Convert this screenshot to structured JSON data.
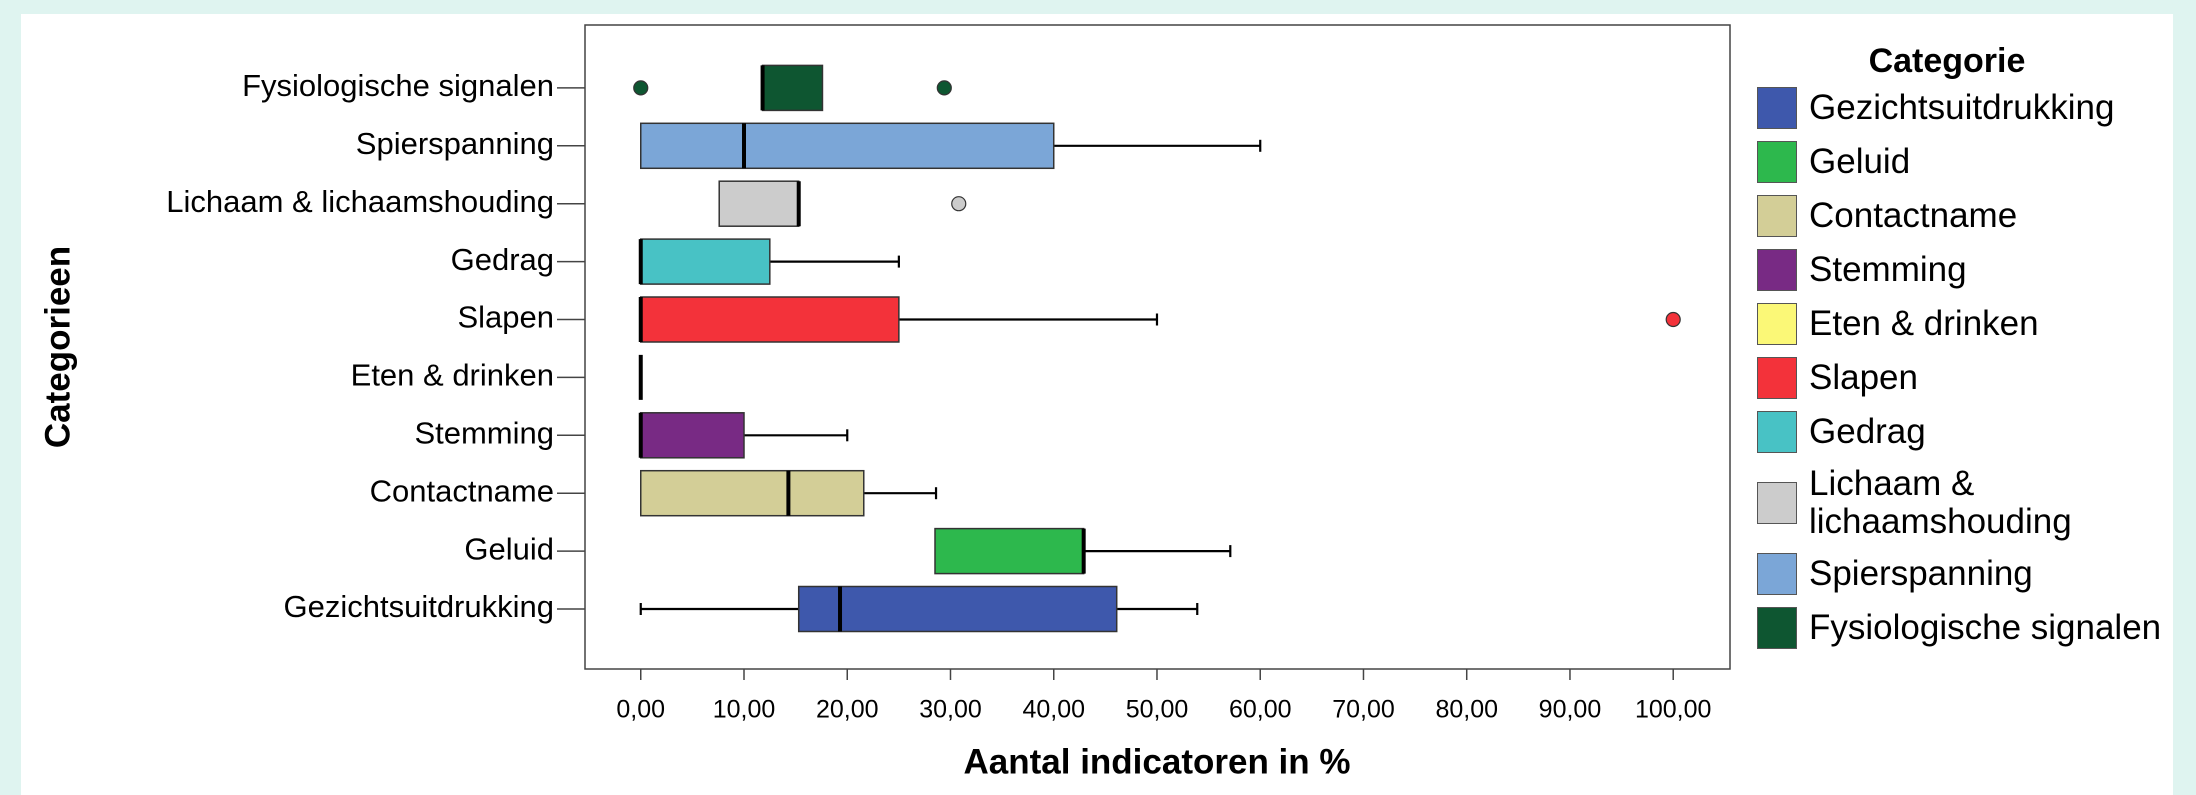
{
  "chart_data": {
    "type": "box",
    "x_label": "Aantal indicatoren in %",
    "y_label": "Categorieen",
    "legend_title": "Categorie",
    "categories": [
      "Gezichtsuitdrukking",
      "Geluid",
      "Contactname",
      "Stemming",
      "Eten & drinken",
      "Slapen",
      "Gedrag",
      "Lichaam & lichaamshouding",
      "Spierspanning",
      "Fysiologische signalen"
    ],
    "boxes": [
      {
        "min": 0,
        "q1": 15.3,
        "median": 19.3,
        "q3": 46.1,
        "max": 53.9,
        "color": "#3e58ac"
      },
      {
        "min": 28.5,
        "q1": 28.5,
        "median": 42.9,
        "q3": 42.9,
        "max": 57.1,
        "color": "#2db84d"
      },
      {
        "min": 0,
        "q1": 0,
        "median": 14.3,
        "q3": 21.6,
        "max": 28.6,
        "color": "#d3ce97"
      },
      {
        "min": 0,
        "q1": 0,
        "median": 0,
        "q3": 10,
        "max": 20,
        "color": "#782a84"
      },
      {
        "min": 0,
        "q1": 0,
        "median": 0,
        "q3": 0,
        "max": 0,
        "color": "#fbf877"
      },
      {
        "min": 0,
        "q1": 0,
        "median": 0,
        "q3": 25,
        "max": 50,
        "outliers": [
          100
        ],
        "color": "#f3323a"
      },
      {
        "min": 0,
        "q1": 0,
        "median": 0,
        "q3": 12.5,
        "max": 25,
        "color": "#48c2c5"
      },
      {
        "min": 7.6,
        "q1": 7.6,
        "median": 15.3,
        "q3": 15.3,
        "max": 15.3,
        "outliers": [
          30.8
        ],
        "color": "#cccccc"
      },
      {
        "min": 0,
        "q1": 0,
        "median": 10,
        "q3": 40,
        "max": 60,
        "color": "#7ba6d7"
      },
      {
        "min": 11.8,
        "q1": 11.8,
        "median": 11.8,
        "q3": 17.6,
        "max": 17.6,
        "outliers": [
          0,
          29.4
        ],
        "color": "#0e5631"
      }
    ],
    "xlim": [
      -5.4,
      105.5
    ],
    "xticks": [
      {
        "value": 0,
        "label": "0,00"
      },
      {
        "value": 10,
        "label": "10,00"
      },
      {
        "value": 20,
        "label": "20,00"
      },
      {
        "value": 30,
        "label": "30,00"
      },
      {
        "value": 40,
        "label": "40,00"
      },
      {
        "value": 50,
        "label": "50,00"
      },
      {
        "value": 60,
        "label": "60,00"
      },
      {
        "value": 70,
        "label": "70,00"
      },
      {
        "value": 80,
        "label": "80,00"
      },
      {
        "value": 90,
        "label": "90,00"
      },
      {
        "value": 100,
        "label": "100,00"
      }
    ]
  }
}
